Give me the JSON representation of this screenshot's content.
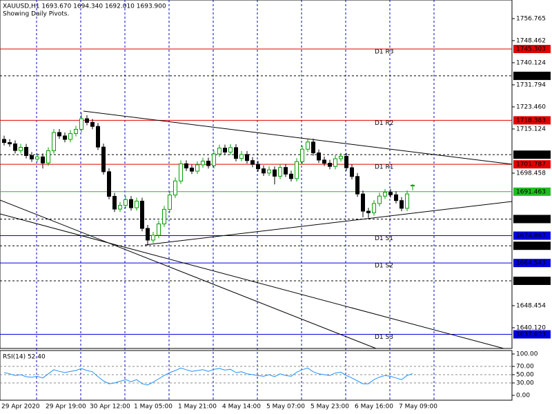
{
  "chart_data": {
    "type": "candlestick",
    "header": "XAUUSD,H1  1693.670 1694.340 1692.010 1693.900",
    "subtitle": "Showing Daily Pivots.",
    "up_color": "#00a000",
    "down_color": "#000000",
    "ylim": [
      1632.3,
      1763.8
    ],
    "yticks": [
      1756.765,
      1748.462,
      1740.124,
      1731.794,
      {
        "value": 1723.46,
        "label": "1723.460"
      },
      1715.124,
      1698.458,
      1648.454,
      {
        "value": 1640.12,
        "label": "1640.120"
      }
    ],
    "grid": true,
    "time_labels": [
      "29 Apr 2020",
      "29 Apr 19:00",
      "30 Apr 12:00",
      "1 May 05:00",
      "1 May 21:00",
      "4 May 14:00",
      "5 May 07:00",
      "5 May 23:00",
      "6 May 16:00",
      "7 May 09:00"
    ],
    "open": [
      1711.2,
      1710.0,
      1709.5,
      1707.0,
      1708.2,
      1705.1,
      1703.8,
      1704.6,
      1702.3,
      1706.9,
      1713.8,
      1712.5,
      1711.2,
      1713.4,
      1715.0,
      1719.0,
      1717.6,
      1716.1,
      1708.3,
      1699.0,
      1689.7,
      1684.9,
      1686.3,
      1688.5,
      1685.4,
      1687.9,
      1677.6,
      1673.2,
      1675.0,
      1679.3,
      1684.8,
      1690.2,
      1695.5,
      1702.0,
      1700.4,
      1699.2,
      1701.6,
      1703.0,
      1701.3,
      1705.7,
      1707.9,
      1706.4,
      1708.1,
      1704.0,
      1705.5,
      1703.2,
      1701.8,
      1700.1,
      1698.5,
      1699.7,
      1697.3,
      1700.6,
      1698.1,
      1696.4,
      1702.8,
      1707.5,
      1710.2,
      1706.1,
      1703.4,
      1702.2,
      1701.0,
      1703.9,
      1704.8,
      1700.5,
      1697.2,
      1690.6,
      1684.1,
      1683.5,
      1687.0,
      1689.8,
      1691.2,
      1690.3,
      1688.1,
      1685.2,
      1693.67
    ],
    "high": [
      1712.6,
      1711.3,
      1710.8,
      1709.5,
      1709.5,
      1706.4,
      1705.9,
      1705.9,
      1708.2,
      1715.1,
      1715.1,
      1713.8,
      1714.7,
      1716.3,
      1721.3,
      1720.3,
      1718.9,
      1717.4,
      1709.6,
      1700.3,
      1691.0,
      1687.6,
      1689.8,
      1689.8,
      1689.2,
      1689.2,
      1678.9,
      1676.3,
      1680.6,
      1686.1,
      1691.5,
      1696.8,
      1703.3,
      1703.3,
      1701.7,
      1702.9,
      1704.3,
      1704.3,
      1707.0,
      1709.2,
      1709.2,
      1709.4,
      1709.4,
      1706.8,
      1706.8,
      1704.5,
      1703.1,
      1701.4,
      1701.0,
      1701.0,
      1701.9,
      1701.9,
      1699.4,
      1704.1,
      1708.8,
      1711.5,
      1711.5,
      1707.4,
      1704.7,
      1703.5,
      1705.2,
      1706.1,
      1706.1,
      1701.8,
      1698.5,
      1691.9,
      1685.4,
      1688.3,
      1691.1,
      1692.5,
      1692.5,
      1691.6,
      1689.4,
      1691.9,
      1694.34
    ],
    "low": [
      1708.9,
      1708.4,
      1705.9,
      1705.9,
      1704.0,
      1702.7,
      1702.7,
      1700.2,
      1701.2,
      1705.8,
      1711.4,
      1710.1,
      1710.1,
      1712.3,
      1713.9,
      1716.5,
      1715.0,
      1707.2,
      1697.9,
      1688.6,
      1683.8,
      1683.8,
      1685.2,
      1684.3,
      1684.3,
      1676.5,
      1671.1,
      1672.1,
      1673.9,
      1678.2,
      1683.7,
      1689.1,
      1694.4,
      1699.3,
      1698.1,
      1698.1,
      1700.5,
      1700.2,
      1700.2,
      1704.6,
      1705.3,
      1705.3,
      1702.9,
      1702.9,
      1702.1,
      1700.7,
      1699.0,
      1697.4,
      1697.4,
      1694.2,
      1696.2,
      1697.0,
      1695.3,
      1695.3,
      1701.7,
      1706.4,
      1705.0,
      1702.3,
      1701.1,
      1699.9,
      1699.9,
      1702.8,
      1699.4,
      1696.1,
      1689.5,
      1681.8,
      1681.6,
      1682.4,
      1685.9,
      1688.7,
      1689.2,
      1687.0,
      1684.1,
      1684.1,
      1692.01
    ],
    "close": [
      1710.0,
      1709.5,
      1707.0,
      1708.2,
      1705.1,
      1703.8,
      1704.6,
      1702.3,
      1706.9,
      1713.8,
      1712.5,
      1711.2,
      1713.4,
      1715.0,
      1719.0,
      1717.6,
      1716.1,
      1708.3,
      1699.0,
      1689.7,
      1684.9,
      1686.3,
      1688.5,
      1685.4,
      1687.9,
      1677.6,
      1673.2,
      1675.0,
      1679.3,
      1684.8,
      1690.2,
      1695.5,
      1702.0,
      1700.4,
      1699.2,
      1701.6,
      1703.0,
      1701.3,
      1705.7,
      1707.9,
      1706.4,
      1708.1,
      1704.0,
      1705.5,
      1703.2,
      1701.8,
      1700.1,
      1698.5,
      1699.7,
      1697.3,
      1700.6,
      1698.1,
      1696.4,
      1702.8,
      1707.5,
      1710.2,
      1706.1,
      1703.4,
      1702.2,
      1701.0,
      1703.9,
      1704.8,
      1700.5,
      1697.2,
      1690.6,
      1684.1,
      1683.5,
      1687.0,
      1689.8,
      1691.2,
      1690.3,
      1688.1,
      1685.2,
      1690.6,
      1693.9
    ],
    "levels": [
      {
        "name": "D1 R3",
        "value": 1745.303,
        "color": "#e00000"
      },
      {
        "value": 1735.179,
        "color": "#000000"
      },
      {
        "name": "D1 R2",
        "value": 1718.383,
        "color": "#e00000"
      },
      {
        "value": 1705.432,
        "color": "#000000"
      },
      {
        "name": "D1 R1",
        "value": 1701.787,
        "color": "#e00000"
      },
      {
        "value": 1691.463,
        "color": "#22bb22"
      },
      {
        "value": 1681.14,
        "label": "1681.140",
        "color": "#000000"
      },
      {
        "name": "D1 S1",
        "value": 1674.867,
        "color": "#0000dd"
      },
      {
        "value": 1671.05,
        "label": "1671.050",
        "color": "#000000"
      },
      {
        "name": "D1 S2",
        "value": 1664.543,
        "color": "#0000dd"
      },
      {
        "value": 1657.822,
        "color": "#000000"
      },
      {
        "name": "D1 S3",
        "value": 1637.623,
        "color": "#0000dd"
      }
    ],
    "rsi": {
      "title": "RSI(14) 52.40",
      "color": "#1e90ff",
      "ylim": [
        0,
        100
      ],
      "yticks": [
        {
          "value": 100,
          "label": "100.00"
        },
        {
          "value": 70,
          "label": "70.00"
        },
        {
          "value": 50,
          "label": "50.00"
        },
        {
          "value": 30,
          "label": "30.00"
        },
        {
          "value": 0,
          "label": "0.00"
        }
      ],
      "values": [
        55,
        52,
        48,
        50,
        45,
        44,
        46,
        42,
        52,
        62,
        58,
        55,
        58,
        60,
        65,
        60,
        57,
        45,
        35,
        28,
        30,
        34,
        38,
        33,
        38,
        28,
        25,
        32,
        40,
        48,
        55,
        60,
        66,
        62,
        58,
        60,
        62,
        58,
        63,
        65,
        61,
        63,
        55,
        57,
        52,
        50,
        48,
        46,
        50,
        45,
        52,
        48,
        46,
        56,
        62,
        66,
        57,
        52,
        50,
        48,
        54,
        56,
        48,
        42,
        35,
        28,
        28,
        38,
        44,
        48,
        46,
        42,
        38,
        48,
        52.4
      ]
    }
  }
}
